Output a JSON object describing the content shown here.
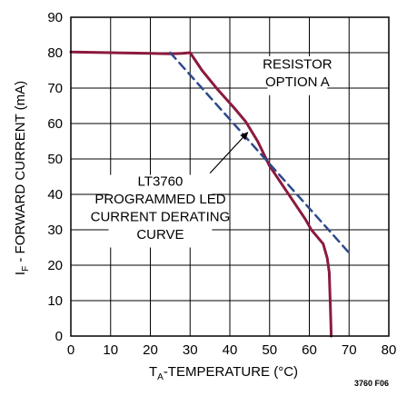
{
  "chart_data": {
    "type": "line",
    "xlabel": {
      "main": "T",
      "sub": "A",
      "rest": "-TEMPERATURE (°C)"
    },
    "ylabel": {
      "main": "I",
      "sub": "F",
      "rest": " - FORWARD CURRENT (mA)"
    },
    "xlim": [
      0,
      80
    ],
    "ylim": [
      0,
      90
    ],
    "x_ticks": [
      0,
      10,
      20,
      30,
      40,
      50,
      60,
      70,
      80
    ],
    "y_ticks": [
      0,
      10,
      20,
      30,
      40,
      50,
      60,
      70,
      80,
      90
    ],
    "grid": true,
    "series": [
      {
        "color": "#8b1a3c",
        "style": "solid",
        "x": [
          0,
          10,
          20,
          25,
          28,
          30,
          33,
          37,
          41,
          44,
          47,
          50,
          53,
          56,
          59,
          60.5,
          62,
          63.5,
          64.5,
          65,
          65.3,
          65.5
        ],
        "y": [
          80.2,
          80.0,
          79.8,
          79.7,
          79.8,
          80.0,
          75.0,
          69.5,
          64.5,
          60.5,
          55.0,
          48.0,
          43.0,
          38.0,
          33.0,
          30.0,
          28.0,
          26.0,
          22.0,
          18.0,
          8.0,
          0.0
        ]
      },
      {
        "color": "#2e4a8c",
        "style": "dashed",
        "x": [
          25,
          70
        ],
        "y": [
          80,
          23.5
        ]
      }
    ],
    "annotations": [
      {
        "text": "RESISTOR",
        "x": 57,
        "y": 75.5,
        "anchor": "middle"
      },
      {
        "text": "OPTION A",
        "x": 57,
        "y": 70.5,
        "anchor": "middle"
      },
      {
        "text": "LT3760",
        "x": 22.5,
        "y": 42.5,
        "anchor": "middle"
      },
      {
        "text": "PROGRAMMED LED",
        "x": 22.5,
        "y": 37.5,
        "anchor": "middle"
      },
      {
        "text": "CURRENT DERATING",
        "x": 22.5,
        "y": 32.5,
        "anchor": "middle"
      },
      {
        "text": "CURVE",
        "x": 22.5,
        "y": 27.5,
        "anchor": "middle"
      }
    ],
    "arrow": {
      "from": [
        35,
        46
      ],
      "to": [
        44.5,
        57.5
      ]
    },
    "figure_code": "3760 F06"
  }
}
